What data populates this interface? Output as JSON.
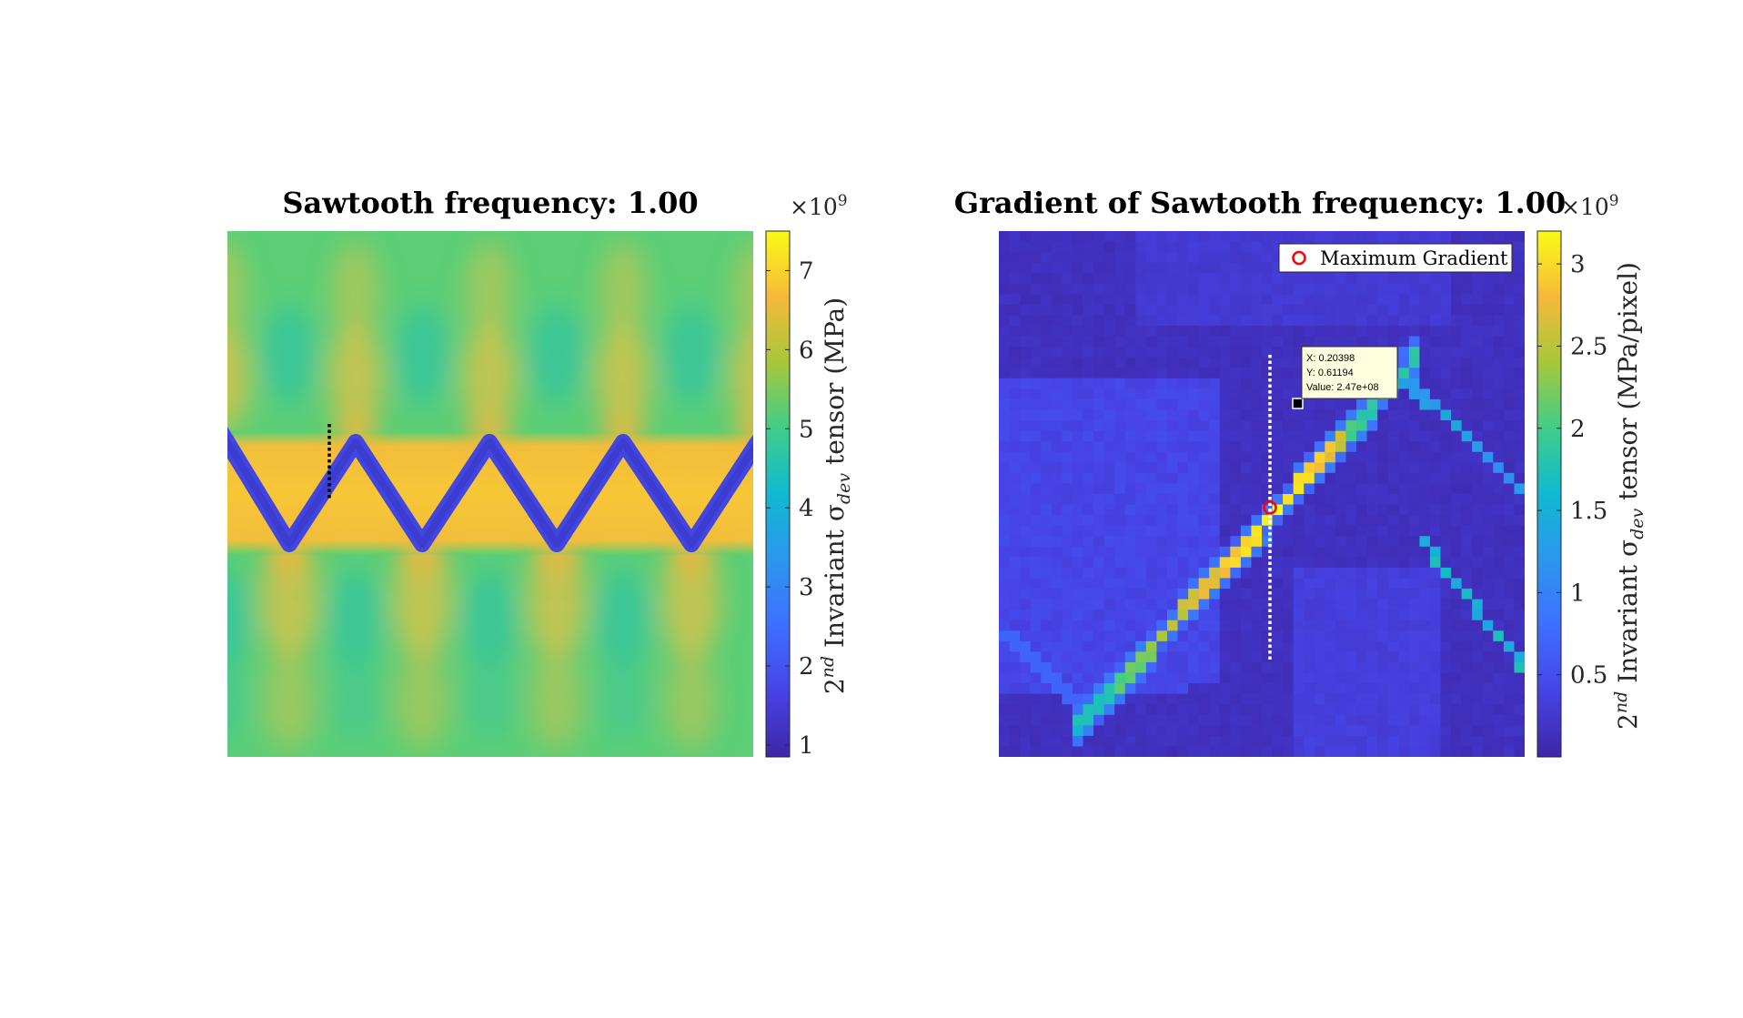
{
  "chart_data": [
    {
      "type": "heatmap",
      "title": "Sawtooth frequency: 1.00",
      "colorbar": {
        "label_base": "2",
        "label_sup": "nd",
        "label_mid": " Invariant σ",
        "label_sub": "dev",
        "label_end": " tensor (MPa)",
        "exponent_base": "×10",
        "exponent_power": "9",
        "range": [
          0.85,
          7.5
        ],
        "ticks": [
          1,
          2,
          3,
          4,
          5,
          6,
          7
        ],
        "tick_labels": [
          "1",
          "2",
          "3",
          "4",
          "5",
          "6",
          "7"
        ]
      },
      "field": {
        "description_values": {
          "background": 5.0,
          "band_peak": 6.4,
          "sawtooth_line": 1.3,
          "lobe_low": 3.9,
          "lobe_high": 5.9
        },
        "sawtooth_periods": 4,
        "band_center_fraction": 0.54
      },
      "annotation": {
        "type": "dotted-vertical-line",
        "color": "#000000"
      }
    },
    {
      "type": "heatmap",
      "title": "Gradient of Sawtooth frequency: 1.00",
      "colorbar": {
        "label_base": "2",
        "label_sup": "nd",
        "label_mid": " Invariant σ",
        "label_sub": "dev",
        "label_end": " tensor (MPa/pixel)",
        "exponent_base": "×10",
        "exponent_power": "9",
        "range": [
          0.0,
          3.2
        ],
        "ticks": [
          0.5,
          1,
          1.5,
          2,
          2.5,
          3
        ],
        "tick_labels": [
          "0.5",
          "1",
          "1.5",
          "2",
          "2.5",
          "3"
        ]
      },
      "legend": {
        "entries": [
          "Maximum Gradient"
        ],
        "placement": "top-right",
        "marker_color": "#ff0000"
      },
      "datatip": {
        "x_label": "X: 0.20398",
        "y_label": "Y: 0.61194",
        "value_label": "Value: 2.47e+08"
      },
      "maximum_point": {
        "x": 0.20398,
        "y": 0.61194,
        "value": 247000000
      },
      "annotation": {
        "type": "dotted-vertical-line",
        "color": "#ffffff"
      }
    }
  ]
}
